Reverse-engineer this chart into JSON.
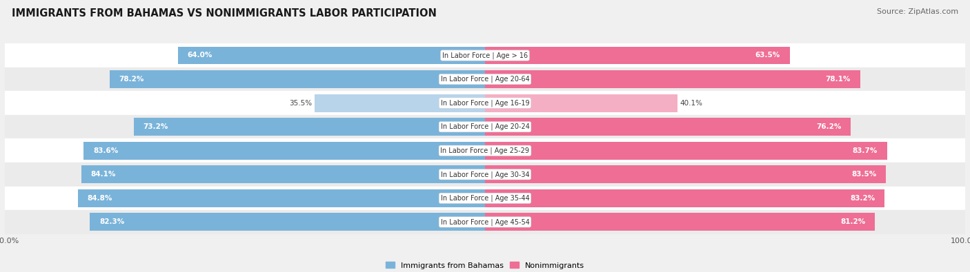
{
  "title": "IMMIGRANTS FROM BAHAMAS VS NONIMMIGRANTS LABOR PARTICIPATION",
  "source": "Source: ZipAtlas.com",
  "categories": [
    "In Labor Force | Age > 16",
    "In Labor Force | Age 20-64",
    "In Labor Force | Age 16-19",
    "In Labor Force | Age 20-24",
    "In Labor Force | Age 25-29",
    "In Labor Force | Age 30-34",
    "In Labor Force | Age 35-44",
    "In Labor Force | Age 45-54"
  ],
  "immigrants_values": [
    64.0,
    78.2,
    35.5,
    73.2,
    83.6,
    84.1,
    84.8,
    82.3
  ],
  "nonimmigrants_values": [
    63.5,
    78.1,
    40.1,
    76.2,
    83.7,
    83.5,
    83.2,
    81.2
  ],
  "immigrants_color": "#7ab3d9",
  "immigrants_color_light": "#b8d4ea",
  "nonimmigrants_color": "#ee6e95",
  "nonimmigrants_color_light": "#f5afc5",
  "background_color": "#f0f0f0",
  "row_bg_even": "#ffffff",
  "row_bg_odd": "#ebebeb",
  "legend_immigrants": "Immigrants from Bahamas",
  "legend_nonimmigrants": "Nonimmigrants",
  "title_fontsize": 10.5,
  "source_fontsize": 8,
  "label_fontsize": 7.5,
  "category_fontsize": 7,
  "axis_label_fontsize": 8
}
